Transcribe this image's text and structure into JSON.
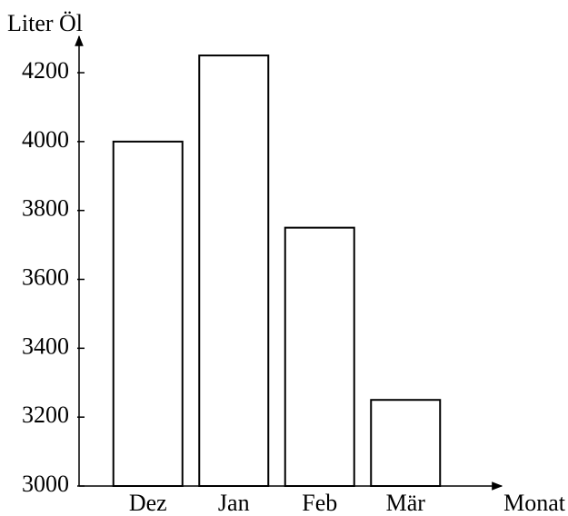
{
  "chart_data": {
    "type": "bar",
    "y_label": "Liter Öl",
    "x_label": "Monat",
    "categories": [
      "Dez",
      "Jan",
      "Feb",
      "Mär"
    ],
    "values": [
      4000,
      4250,
      3750,
      3250
    ],
    "color": "#ffffff",
    "ylim": [
      3000,
      4300
    ],
    "yticks": [
      3000,
      3200,
      3400,
      3600,
      3800,
      4000,
      4200
    ],
    "grid": false
  }
}
